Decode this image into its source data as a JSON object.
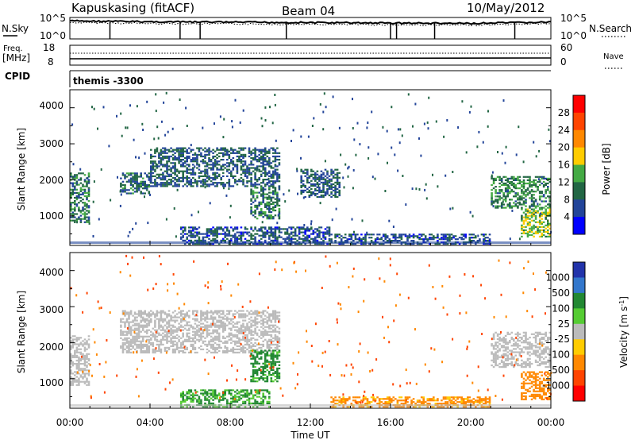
{
  "header": {
    "station": "Kapuskasing (fitACF)",
    "beam": "Beam 04",
    "date": "10/May/2012"
  },
  "top_panel": {
    "left_label": "N.Sky",
    "left_ticks": [
      "10^5",
      "10^0"
    ],
    "right_label": "N.Search",
    "right_ticks": [
      "10^5",
      "10^0"
    ]
  },
  "freq_panel": {
    "left_label_1": "Freq.",
    "left_label_2": "[MHz]",
    "left_ticks": [
      "18",
      "8"
    ],
    "right_label": "Nave",
    "right_ticks": [
      "60",
      "0"
    ]
  },
  "cpid": {
    "label": "CPID",
    "value": "themis -3300"
  },
  "axes": {
    "xlabel": "Time UT",
    "ylabel_main": "Slant Range",
    "ylabel_unit": "[km]",
    "x_ticks": [
      "00:00",
      "04:00",
      "08:00",
      "12:00",
      "16:00",
      "20:00",
      "00:00"
    ],
    "y_ticks": [
      "4000",
      "3000",
      "2000",
      "1000"
    ]
  },
  "power_colorbar": {
    "label": "Power [dB]",
    "ticks": [
      "28",
      "24",
      "20",
      "16",
      "12",
      "8",
      "4"
    ],
    "colors": [
      "#ff0000",
      "#ff4400",
      "#ff8800",
      "#ffcc00",
      "#44aa44",
      "#226644",
      "#224499",
      "#0000ff"
    ]
  },
  "velocity_colorbar": {
    "label": "Velocity",
    "unit": "[m s",
    "unit_sup": "-1",
    "unit_end": "]",
    "ticks": [
      "1000",
      "500",
      "100",
      "25",
      "-25",
      "-100",
      "-500",
      "-1000"
    ],
    "colors": [
      "#2233aa",
      "#3377cc",
      "#228833",
      "#55cc33",
      "#bbbbbb",
      "#ffcc00",
      "#ff8800",
      "#ff4400",
      "#ff0000"
    ]
  },
  "chart_data": [
    {
      "type": "line",
      "title": "",
      "x": [
        "00:00",
        "04:00",
        "08:00",
        "12:00",
        "16:00",
        "20:00",
        "00:00"
      ],
      "series": [
        {
          "name": "N.Sky",
          "values": [
            4.2,
            4.0,
            3.9,
            3.8,
            3.7,
            3.6,
            3.9
          ]
        },
        {
          "name": "N.Search",
          "values": [
            3.8,
            3.6,
            3.5,
            3.4,
            3.3,
            3.2,
            3.6
          ]
        }
      ],
      "ylim": [
        0,
        5
      ]
    },
    {
      "type": "line",
      "title": "",
      "x": [
        "00:00",
        "04:00",
        "08:00",
        "12:00",
        "16:00",
        "20:00",
        "00:00"
      ],
      "series": [
        {
          "name": "Freq.",
          "values": [
            10,
            10,
            10,
            10,
            10,
            10,
            10
          ]
        },
        {
          "name": "Nave",
          "values": [
            35,
            35,
            35,
            35,
            35,
            35,
            35
          ]
        }
      ]
    },
    {
      "type": "heatmap",
      "title": "",
      "xlabel": "Time UT",
      "ylabel": "Slant Range [km]",
      "xlim": [
        0,
        24
      ],
      "ylim": [
        180,
        4500
      ],
      "colorbar_label": "Power [dB]",
      "colorbar_range": [
        0,
        30
      ],
      "regions": [
        {
          "t": [
            0,
            1
          ],
          "range": [
            800,
            2200
          ],
          "value": 10
        },
        {
          "t": [
            2.5,
            4
          ],
          "range": [
            1600,
            2200
          ],
          "value": 9
        },
        {
          "t": [
            4,
            10.5
          ],
          "range": [
            1800,
            2900
          ],
          "value": 8
        },
        {
          "t": [
            9,
            10.5
          ],
          "range": [
            900,
            1800
          ],
          "value": 10
        },
        {
          "t": [
            11.5,
            13.5
          ],
          "range": [
            1500,
            2300
          ],
          "value": 8
        },
        {
          "t": [
            5.5,
            13
          ],
          "range": [
            200,
            700
          ],
          "value": 7
        },
        {
          "t": [
            13,
            21
          ],
          "range": [
            200,
            500
          ],
          "value": 7
        },
        {
          "t": [
            21,
            24
          ],
          "range": [
            1200,
            2100
          ],
          "value": 11
        },
        {
          "t": [
            22.5,
            24
          ],
          "range": [
            400,
            1200
          ],
          "value": 15
        }
      ]
    },
    {
      "type": "heatmap",
      "title": "",
      "xlabel": "Time UT",
      "ylabel": "Slant Range [km]",
      "xlim": [
        0,
        24
      ],
      "ylim": [
        180,
        4500
      ],
      "colorbar_label": "Velocity [m s-1]",
      "colorbar_range": [
        -1000,
        1000
      ],
      "regions": [
        {
          "t": [
            0,
            1
          ],
          "range": [
            800,
            2200
          ],
          "value": 0
        },
        {
          "t": [
            2.5,
            10.5
          ],
          "range": [
            1700,
            2900
          ],
          "value": 0
        },
        {
          "t": [
            9,
            10.5
          ],
          "range": [
            900,
            1800
          ],
          "value": 150
        },
        {
          "t": [
            5.5,
            10
          ],
          "range": [
            200,
            700
          ],
          "value": 120
        },
        {
          "t": [
            13,
            21
          ],
          "range": [
            200,
            500
          ],
          "value": -150
        },
        {
          "t": [
            21,
            24
          ],
          "range": [
            1300,
            2300
          ],
          "value": 0
        },
        {
          "t": [
            22.5,
            24
          ],
          "range": [
            400,
            1200
          ],
          "value": -200
        }
      ]
    }
  ]
}
